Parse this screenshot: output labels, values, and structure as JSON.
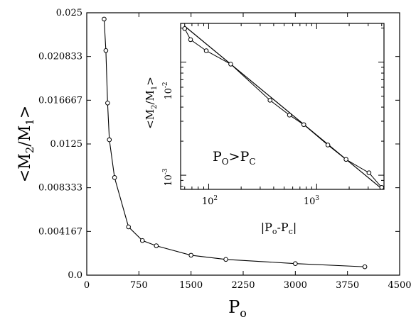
{
  "chart_data": [
    {
      "type": "line",
      "xlabel": "P",
      "xlabel_sub": "o",
      "ylabel_parts": [
        "<M",
        "2",
        "/M",
        "1",
        ">"
      ],
      "xlim": [
        0,
        4500
      ],
      "ylim": [
        0,
        0.025
      ],
      "x_ticks": [
        0,
        750,
        1500,
        2250,
        3000,
        3750,
        4500
      ],
      "x_tick_labels": [
        "0",
        "750",
        "1500",
        "2250",
        "3000",
        "3750",
        "4500"
      ],
      "y_ticks": [
        0,
        0.004167,
        0.008333,
        0.0125,
        0.016667,
        0.020833,
        0.025
      ],
      "y_tick_labels": [
        "0.0",
        "0.004167",
        "0.008333",
        "0.0125",
        "0.016667",
        "0.020833",
        "0.025"
      ],
      "grid": false,
      "series": [
        {
          "x": [
            250,
            275,
            300,
            325,
            400,
            600,
            800,
            1000,
            1500,
            2000,
            3000,
            4000
          ],
          "y": [
            0.0244,
            0.0214,
            0.0164,
            0.0129,
            0.0093,
            0.0046,
            0.0033,
            0.0028,
            0.0019,
            0.0015,
            0.0011,
            0.0008
          ],
          "marker": "circle"
        }
      ]
    },
    {
      "type": "line",
      "xscale": "log",
      "yscale": "log",
      "xlabel": "|P",
      "xlabel_sub": "o",
      "xlabel_mid": "-P",
      "xlabel_sub2": "c",
      "xlabel_end": "|",
      "ylabel_parts": [
        "<M",
        "2",
        "/M",
        "1",
        ">"
      ],
      "xlim": [
        55,
        4200
      ],
      "ylim": [
        0.00075,
        0.022
      ],
      "x_tick_labels": [
        {
          "base": "10",
          "exp": "2",
          "value": 100
        },
        {
          "base": "10",
          "exp": "3",
          "value": 1000
        }
      ],
      "y_tick_labels": [
        {
          "base": "10",
          "exp": "-2",
          "value": 0.01
        },
        {
          "base": "10",
          "exp": "-3",
          "value": 0.001
        }
      ],
      "annotation": {
        "p1": "P",
        "s1": "O",
        "op": ">",
        "p2": "P",
        "s2": "C"
      },
      "grid": false,
      "series": [
        {
          "x": [
            60,
            68,
            95,
            160,
            370,
            560,
            760,
            1270,
            1870,
            3050,
            4000
          ],
          "y": [
            0.0198,
            0.0158,
            0.0126,
            0.0096,
            0.0046,
            0.0034,
            0.0028,
            0.00185,
            0.00138,
            0.00105,
            0.00078
          ],
          "marker": "circle"
        },
        {
          "x": [
            60,
            4000
          ],
          "y": [
            0.0208,
            0.00076
          ],
          "marker": "none"
        }
      ]
    }
  ]
}
